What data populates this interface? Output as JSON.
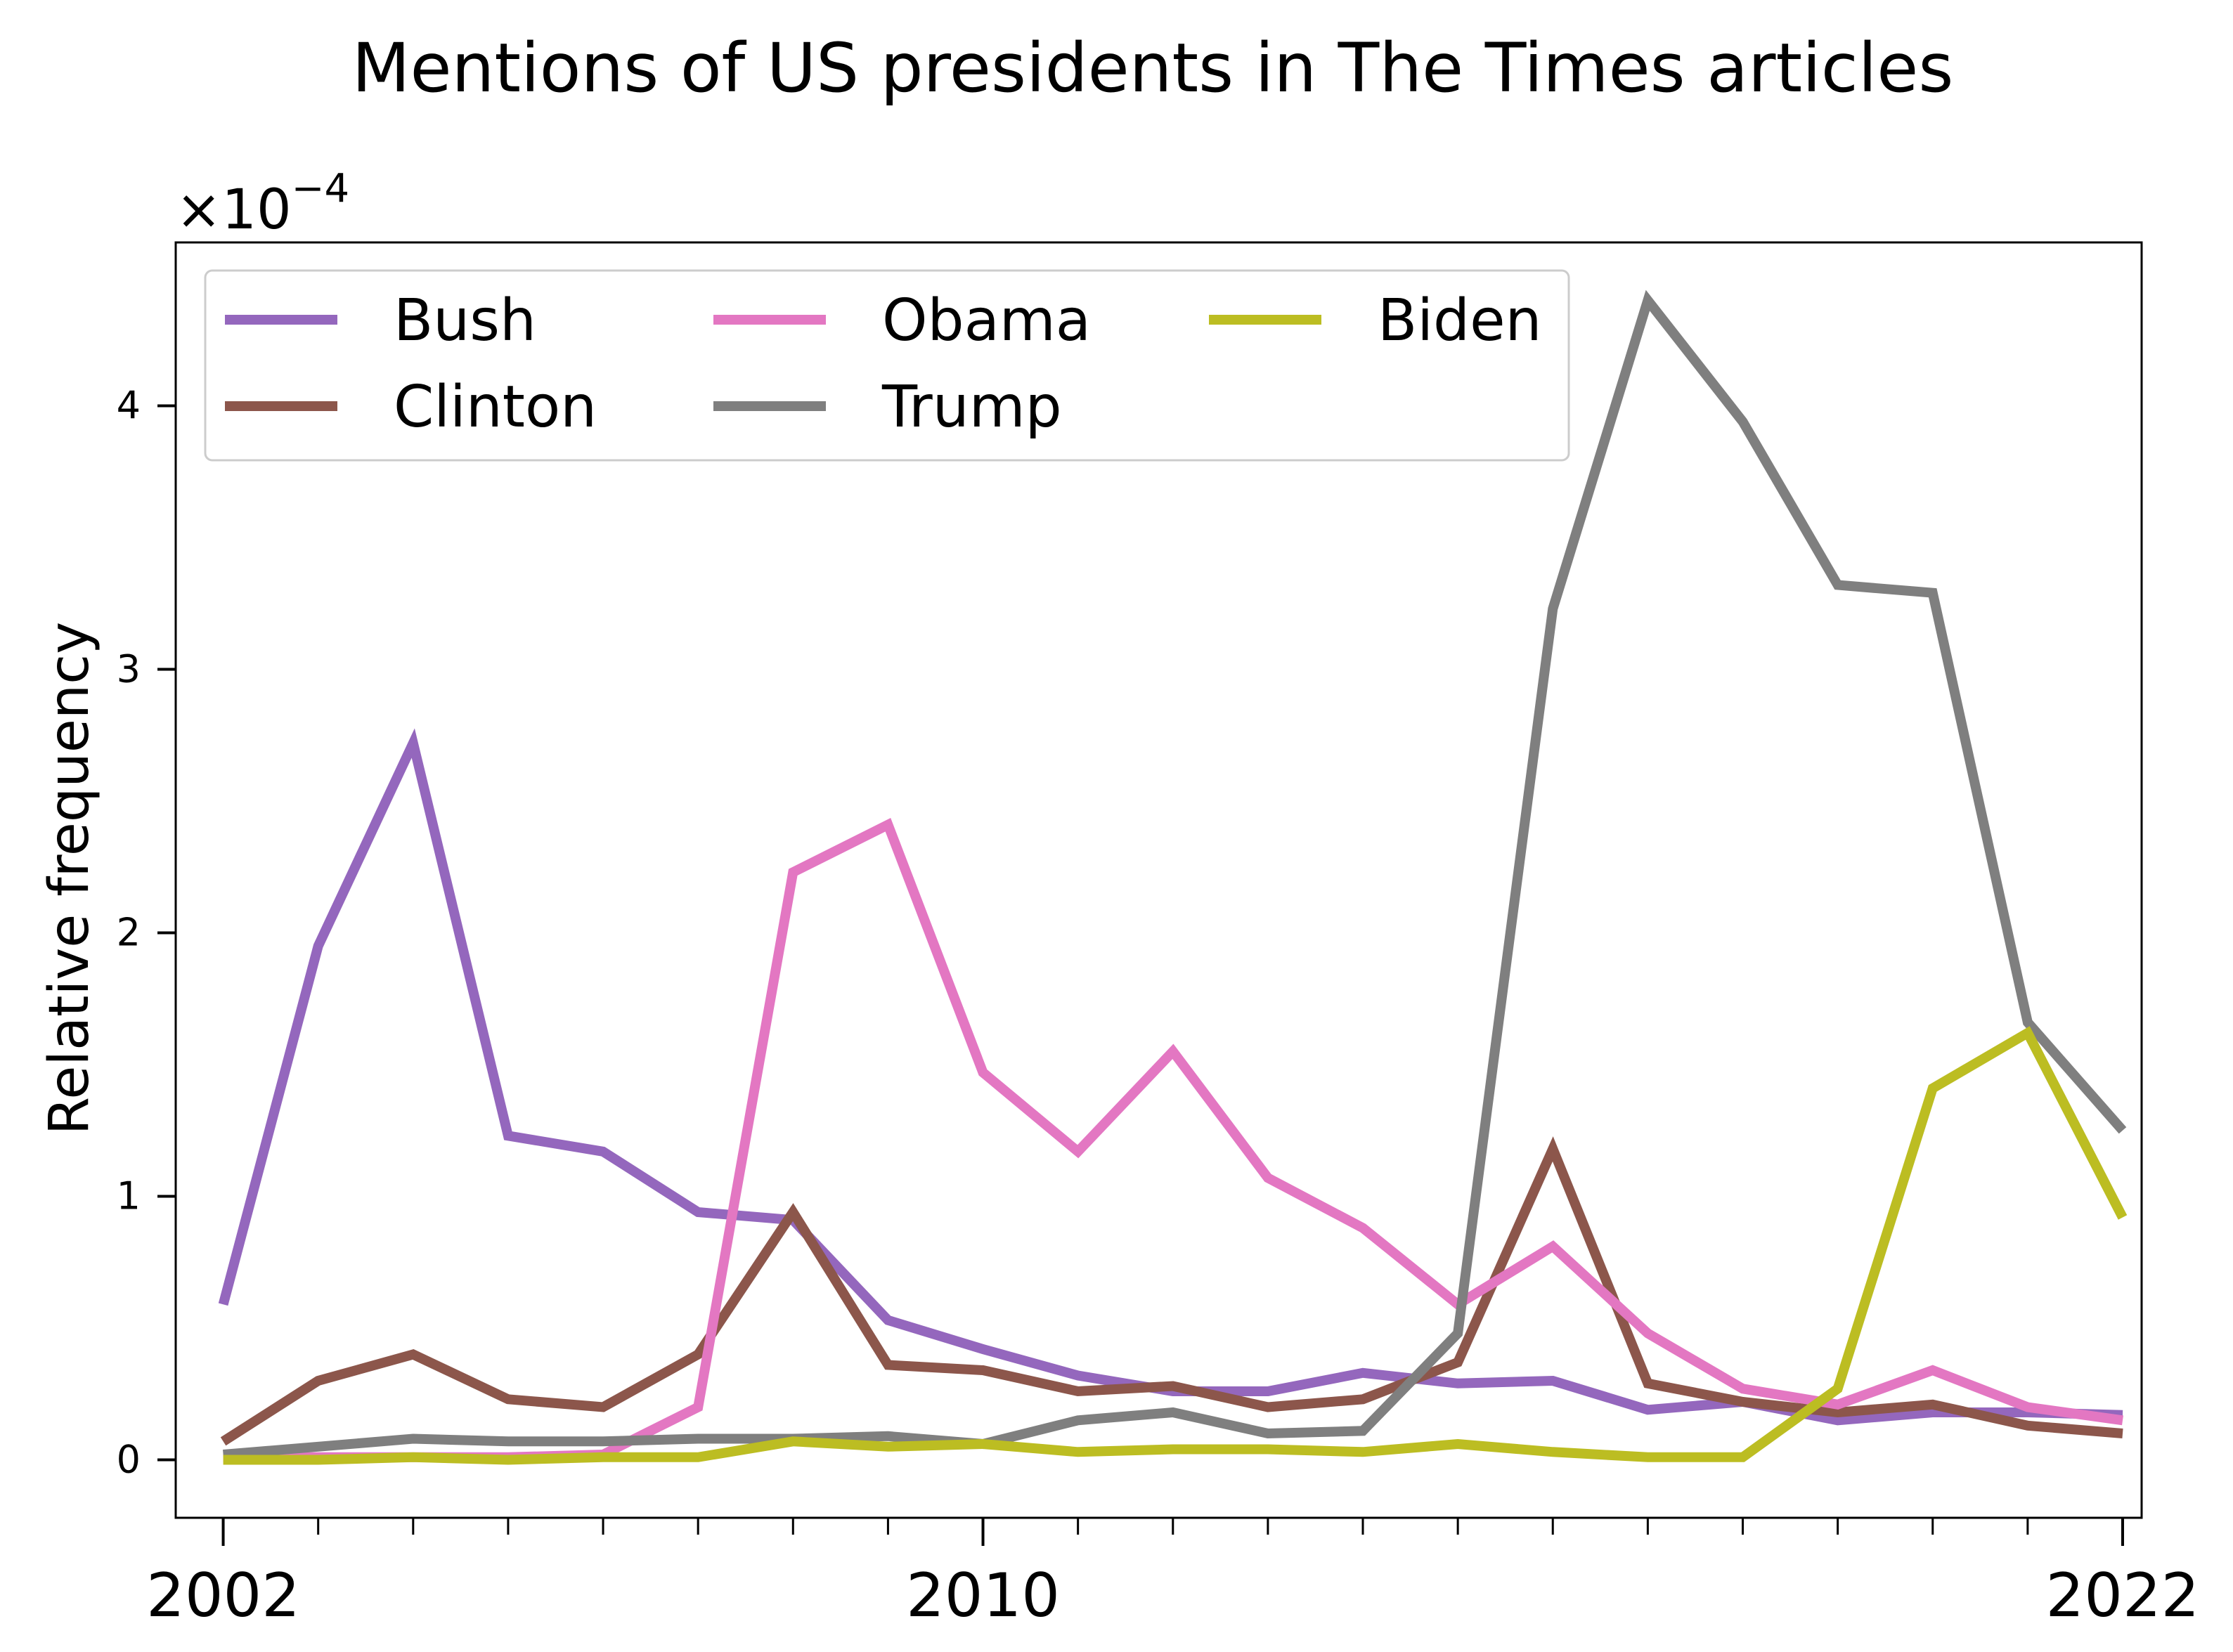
{
  "chart_data": {
    "type": "line",
    "title": "Mentions of US presidents in The Times articles",
    "xlabel": "",
    "ylabel": "Relative frequency",
    "y_scale_label": "×10",
    "y_scale_exponent": "−4",
    "x": [
      2002,
      2003,
      2004,
      2005,
      2006,
      2007,
      2008,
      2009,
      2010,
      2011,
      2012,
      2013,
      2014,
      2015,
      2016,
      2017,
      2018,
      2019,
      2020,
      2021,
      2022
    ],
    "xlim": [
      2001.5,
      2022.2
    ],
    "ylim": [
      -0.22,
      4.62
    ],
    "x_major_ticks": [
      2002,
      2010,
      2022
    ],
    "x_tick_labels": [
      "2002",
      "2010",
      "2022"
    ],
    "y_ticks": [
      0,
      1,
      2,
      3,
      4
    ],
    "y_tick_labels": [
      "0",
      "1",
      "2",
      "3",
      "4"
    ],
    "grid": false,
    "legend_position": "top-left",
    "series": [
      {
        "name": "Bush",
        "color": "#9467bd",
        "values": [
          0.59,
          1.95,
          2.72,
          1.23,
          1.17,
          0.94,
          0.91,
          0.53,
          0.42,
          0.32,
          0.26,
          0.26,
          0.33,
          0.29,
          0.3,
          0.19,
          0.22,
          0.15,
          0.18,
          0.18,
          0.17
        ]
      },
      {
        "name": "Clinton",
        "color": "#8c564b",
        "values": [
          0.07,
          0.3,
          0.4,
          0.23,
          0.2,
          0.4,
          0.94,
          0.36,
          0.34,
          0.26,
          0.28,
          0.2,
          0.23,
          0.37,
          1.18,
          0.29,
          0.22,
          0.18,
          0.21,
          0.13,
          0.1
        ]
      },
      {
        "name": "Obama",
        "color": "#e377c2",
        "values": [
          0.01,
          0.01,
          0.01,
          0.01,
          0.02,
          0.2,
          2.23,
          2.41,
          1.47,
          1.17,
          1.55,
          1.07,
          0.88,
          0.59,
          0.81,
          0.48,
          0.27,
          0.21,
          0.34,
          0.2,
          0.15
        ]
      },
      {
        "name": "Trump",
        "color": "#7f7f7f",
        "values": [
          0.02,
          0.05,
          0.08,
          0.07,
          0.07,
          0.08,
          0.08,
          0.09,
          0.06,
          0.15,
          0.18,
          0.1,
          0.11,
          0.48,
          3.23,
          4.4,
          3.94,
          3.32,
          3.29,
          1.66,
          1.25
        ]
      },
      {
        "name": "Biden",
        "color": "#bcbd22",
        "values": [
          0.0,
          0.0,
          0.01,
          0.0,
          0.01,
          0.01,
          0.07,
          0.05,
          0.06,
          0.03,
          0.04,
          0.04,
          0.03,
          0.06,
          0.03,
          0.01,
          0.01,
          0.27,
          1.41,
          1.62,
          0.92
        ]
      }
    ]
  }
}
